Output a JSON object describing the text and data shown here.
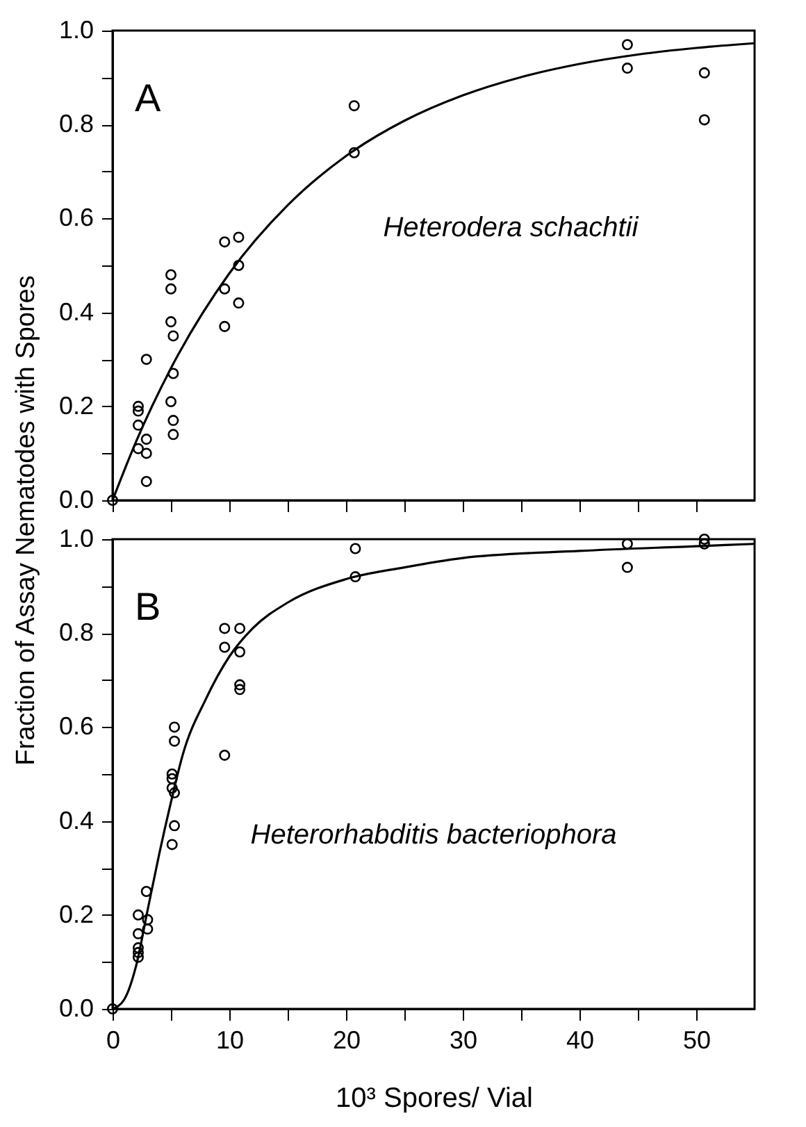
{
  "chart_data": [
    {
      "type": "scatter",
      "ylabel": "Fraction of Assay Nematodes with Spores",
      "annotations": [
        "A",
        "Heterodera  schachtii"
      ],
      "tick_labels": "y",
      "xlim": [
        0,
        55
      ],
      "xticks": [
        0,
        {
          "value": 5,
          "label": null
        },
        10,
        {
          "value": 15,
          "label": null
        },
        20,
        {
          "value": 25,
          "label": null
        },
        30,
        {
          "value": 35,
          "label": null
        },
        40,
        {
          "value": 45,
          "label": null
        },
        50
      ],
      "ylim": [
        0,
        1
      ],
      "yticks": [
        {
          "value": 0,
          "label": "0.0"
        },
        {
          "value": 0.1,
          "label": null
        },
        0.2,
        {
          "value": 0.3,
          "label": null
        },
        0.4,
        {
          "value": 0.5,
          "label": null
        },
        0.6,
        {
          "value": 0.7,
          "label": null
        },
        0.8,
        {
          "value": 0.9,
          "label": null
        },
        {
          "value": 1,
          "label": "1.0"
        }
      ],
      "series": [
        {
          "type": "scatter",
          "marker": "circle",
          "color": "#000000",
          "x": [
            0,
            2.2,
            2.2,
            2.2,
            2.2,
            2.9,
            2.9,
            2.9,
            2.9,
            5.0,
            5.0,
            5.0,
            5.2,
            5.2,
            5.0,
            5.2,
            5.2,
            9.6,
            10.8,
            9.6,
            10.8,
            10.8,
            9.6,
            20.7,
            20.7,
            44.1,
            44.1,
            50.7,
            50.7
          ],
          "values": [
            0,
            0.2,
            0.19,
            0.16,
            0.11,
            0.3,
            0.13,
            0.1,
            0.04,
            0.48,
            0.45,
            0.38,
            0.35,
            0.27,
            0.21,
            0.17,
            0.14,
            0.55,
            0.56,
            0.45,
            0.5,
            0.42,
            0.37,
            0.84,
            0.74,
            0.97,
            0.92,
            0.91,
            0.81
          ]
        },
        {
          "type": "line",
          "marker": "none",
          "color": "#000000",
          "x": [
            0,
            2,
            5,
            10,
            15,
            20,
            25,
            30,
            35,
            40,
            45,
            50,
            55
          ],
          "values": [
            0,
            0.124,
            0.281,
            0.483,
            0.628,
            0.733,
            0.808,
            0.862,
            0.901,
            0.929,
            0.949,
            0.963,
            0.973
          ]
        }
      ]
    },
    {
      "type": "scatter",
      "xlabel": "10³ Spores/ Vial",
      "annotations": [
        "B",
        "Heterorhabditis  bacteriophora"
      ],
      "xlim": [
        0,
        55
      ],
      "xticks": [
        0,
        {
          "value": 5,
          "label": null
        },
        10,
        {
          "value": 15,
          "label": null
        },
        20,
        {
          "value": 25,
          "label": null
        },
        30,
        {
          "value": 35,
          "label": null
        },
        40,
        {
          "value": 45,
          "label": null
        },
        50
      ],
      "ylim": [
        0,
        1
      ],
      "yticks": [
        {
          "value": 0,
          "label": "0.0"
        },
        {
          "value": 0.1,
          "label": null
        },
        0.2,
        {
          "value": 0.3,
          "label": null
        },
        0.4,
        {
          "value": 0.5,
          "label": null
        },
        0.6,
        {
          "value": 0.7,
          "label": null
        },
        0.8,
        {
          "value": 0.9,
          "label": null
        },
        {
          "value": 1,
          "label": "1.0"
        }
      ],
      "series": [
        {
          "type": "scatter",
          "marker": "circle",
          "color": "#000000",
          "x": [
            0,
            2.2,
            2.2,
            2.2,
            2.2,
            2.2,
            2.9,
            3.0,
            3.0,
            5.3,
            5.3,
            5.1,
            5.1,
            5.1,
            5.3,
            5.3,
            5.1,
            9.6,
            9.6,
            9.6,
            10.9,
            10.9,
            10.9,
            10.9,
            20.8,
            20.8,
            44.1,
            44.1,
            50.7,
            50.7
          ],
          "values": [
            0,
            0.2,
            0.16,
            0.13,
            0.12,
            0.11,
            0.25,
            0.19,
            0.17,
            0.6,
            0.57,
            0.5,
            0.49,
            0.47,
            0.46,
            0.39,
            0.35,
            0.81,
            0.77,
            0.54,
            0.81,
            0.76,
            0.69,
            0.68,
            0.98,
            0.92,
            0.99,
            0.94,
            1.0,
            0.99
          ]
        },
        {
          "type": "line",
          "marker": "none",
          "color": "#000000",
          "x": [
            0,
            1,
            2,
            3,
            4,
            5,
            6,
            8,
            10,
            12,
            15,
            20,
            25,
            30,
            40,
            50,
            55
          ],
          "values": [
            0,
            0.02,
            0.09,
            0.21,
            0.33,
            0.44,
            0.54,
            0.66,
            0.75,
            0.81,
            0.865,
            0.915,
            0.94,
            0.96,
            0.975,
            0.985,
            0.99
          ]
        }
      ]
    }
  ]
}
